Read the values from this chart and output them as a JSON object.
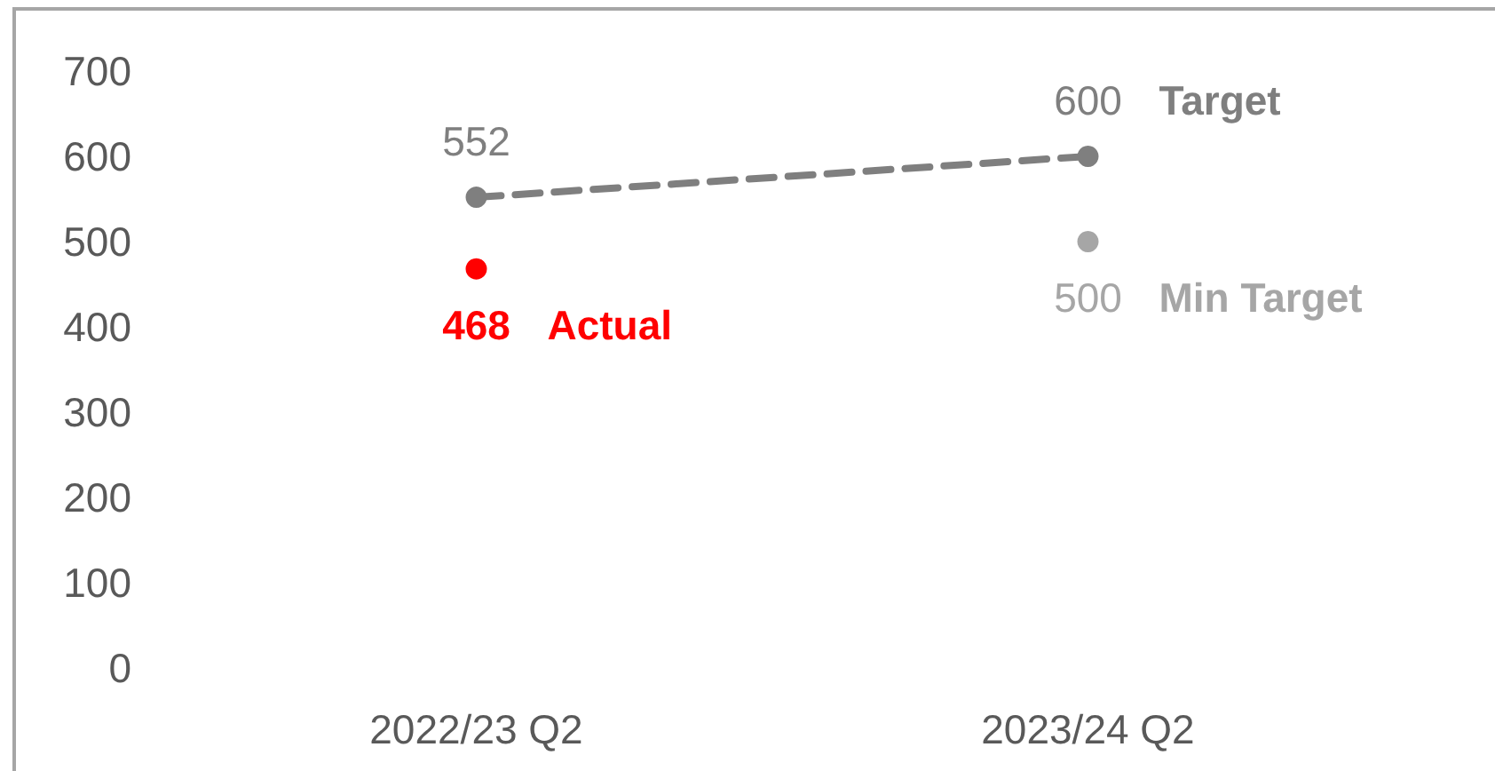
{
  "chart_data": {
    "type": "line",
    "categories": [
      "2022/23 Q2",
      "2023/24 Q2"
    ],
    "ylim": [
      0,
      700
    ],
    "yticks": [
      0,
      100,
      200,
      300,
      400,
      500,
      600,
      700
    ],
    "data_labels": true,
    "marker": "circle",
    "line_style": "dashed",
    "series": [
      {
        "name": "Target",
        "color": "#7f7f7f",
        "values": [
          552,
          600
        ]
      },
      {
        "name": "Actual",
        "type": "scatter",
        "color": "#ff0000",
        "values": [
          468,
          null
        ]
      },
      {
        "name": "Min Target",
        "type": "scatter",
        "color": "#a6a6a6",
        "values": [
          null,
          500
        ]
      }
    ]
  }
}
